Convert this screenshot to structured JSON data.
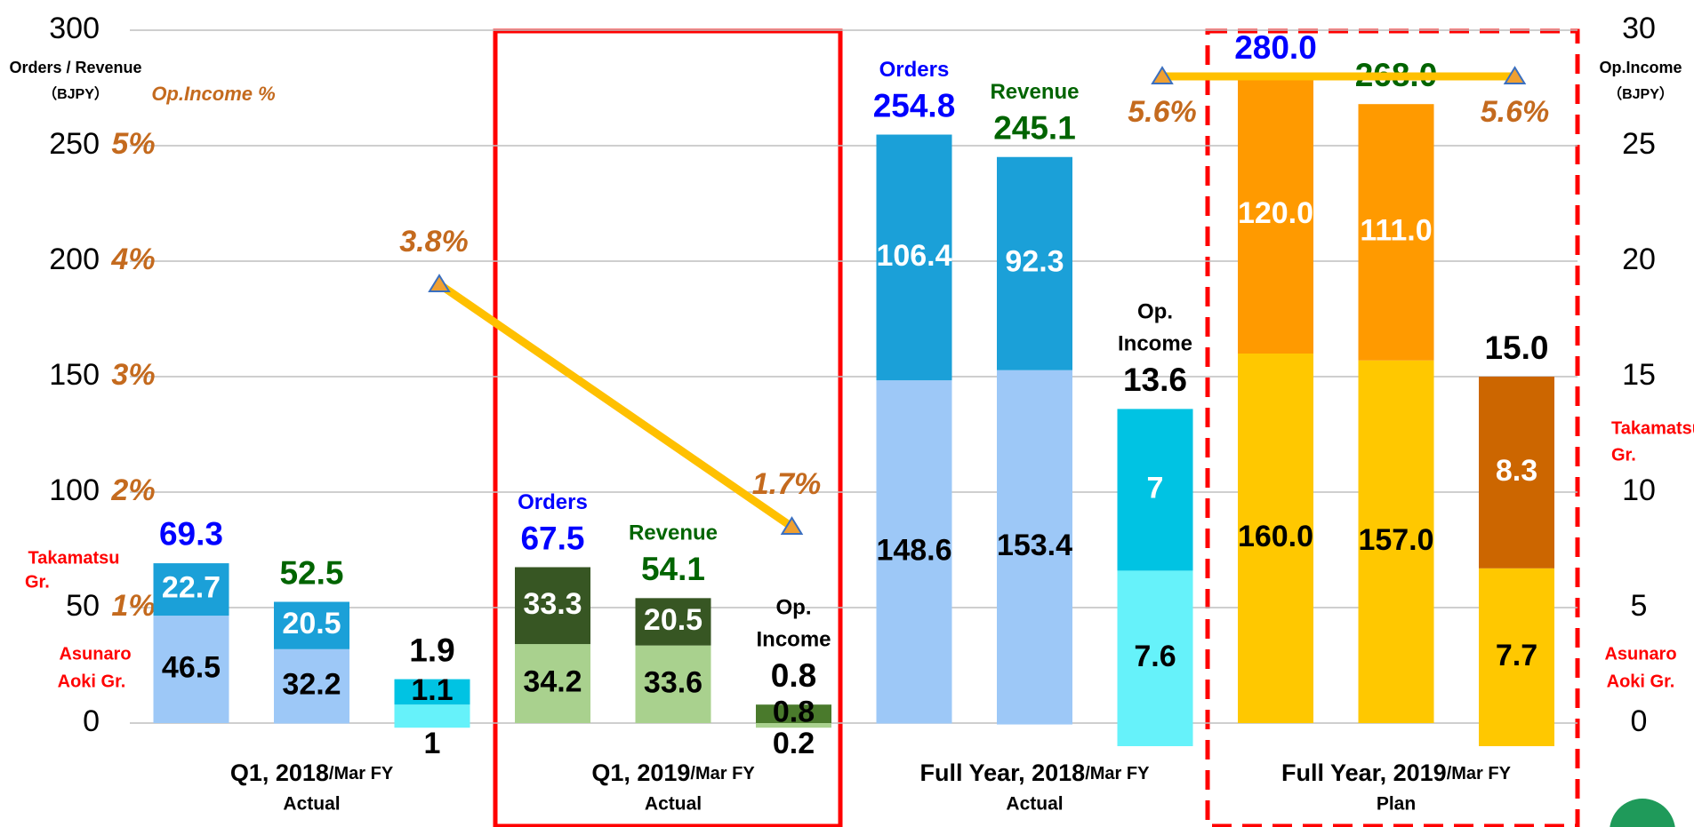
{
  "chart_data": {
    "type": "bar",
    "y_label": "Orders / Revenue",
    "y_unit": "（BJPY）",
    "pct_axis_label": "Op.Income %",
    "y2_label": "Op.Income",
    "y2_unit": "（BJPY）",
    "ylim": [
      0,
      300
    ],
    "yticks": [
      0,
      50,
      100,
      150,
      200,
      250,
      300
    ],
    "y2lim": [
      0,
      30
    ],
    "y2ticks": [
      0,
      5,
      10,
      15,
      20,
      25,
      30
    ],
    "pctlim": [
      0,
      6
    ],
    "pctticks": [
      {
        "value": 1,
        "label": "1%"
      },
      {
        "value": 2,
        "label": "2%"
      },
      {
        "value": 3,
        "label": "3%"
      },
      {
        "value": 4,
        "label": "4%"
      },
      {
        "value": 5,
        "label": "5%"
      }
    ],
    "grid": true,
    "line_color": "#ffc000",
    "legend": [
      [
        "Takamatsu",
        "Gr."
      ],
      [
        "Asunaro",
        "Aoki Gr."
      ]
    ],
    "groups": [
      {
        "label": "Q1, 2018",
        "label_suffix": "/Mar FY",
        "sub": "Actual",
        "pct": 3.8,
        "pct_label": "3.8%",
        "bars": [
          {
            "segments": [
              46.5,
              22.7
            ],
            "total": 69.3,
            "colors": [
              "#9dc8f7",
              "#1ba0d8"
            ],
            "total_color": "#0000ff"
          },
          {
            "segments": [
              32.2,
              20.5
            ],
            "total": 52.5,
            "colors": [
              "#9dc8f7",
              "#1ba0d8"
            ],
            "total_color": "#006400"
          },
          {
            "axis": "y2",
            "segments": [
              1.0,
              1.1
            ],
            "total": 1.9,
            "colors": [
              "#66f2fa",
              "#00c3e3"
            ],
            "total_color": "#000000"
          }
        ]
      },
      {
        "label": "Q1, 2019",
        "label_suffix": "/Mar FY",
        "sub": "Actual",
        "pct": 1.7,
        "pct_label": "1.7%",
        "bars": [
          {
            "names": [
              "Orders"
            ],
            "segments": [
              34.2,
              33.3
            ],
            "total": 67.5,
            "colors": [
              "#a9d18e",
              "#375623"
            ],
            "total_color": "#0000ff"
          },
          {
            "names": [
              "Revenue"
            ],
            "segments": [
              33.6,
              20.5
            ],
            "total": 54.1,
            "colors": [
              "#a9d18e",
              "#375623"
            ],
            "total_color": "#006400"
          },
          {
            "axis": "y2",
            "names": [
              "Op.",
              "Income"
            ],
            "segments": [
              0.2,
              0.8
            ],
            "total": 0.8,
            "colors": [
              "#a9d18e",
              "#4a7a2c"
            ],
            "total_color": "#000000"
          }
        ]
      },
      {
        "label": "Full Year, 2018",
        "label_suffix": "/Mar FY",
        "sub": "Actual",
        "pct": 5.6,
        "pct_label": "5.6%",
        "bars": [
          {
            "names": [
              "Orders"
            ],
            "segments": [
              148.6,
              106.4
            ],
            "total": 254.8,
            "colors": [
              "#9dc8f7",
              "#1ba0d8"
            ],
            "total_color": "#0000ff"
          },
          {
            "names": [
              "Revenue"
            ],
            "segments": [
              153.4,
              92.3
            ],
            "total": 245.1,
            "colors": [
              "#9dc8f7",
              "#1ba0d8"
            ],
            "total_color": "#006400"
          },
          {
            "axis": "y2",
            "names": [
              "Op.",
              "Income"
            ],
            "segments": [
              7.6,
              7.0
            ],
            "total": 13.6,
            "colors": [
              "#66f2fa",
              "#00c3e3"
            ],
            "total_color": "#000000"
          }
        ]
      },
      {
        "label": "Full Year, 2019",
        "label_suffix": "/Mar FY",
        "sub": "Plan",
        "pct": 5.6,
        "pct_label": "5.6%",
        "bars": [
          {
            "segments": [
              160.0,
              120.0
            ],
            "total": 280.0,
            "value_labels": [
              "160.0",
              "120.0"
            ],
            "total_label": "280.0",
            "colors": [
              "#ffc800",
              "#ff9a00"
            ],
            "total_color": "#0000ff"
          },
          {
            "segments": [
              157.0,
              111.0
            ],
            "total": 268.0,
            "value_labels": [
              "157.0",
              "111.0"
            ],
            "total_label": "268.0",
            "colors": [
              "#ffc800",
              "#ff9a00"
            ],
            "total_color": "#006400"
          },
          {
            "axis": "y2",
            "segments": [
              7.7,
              8.3
            ],
            "total": 15.0,
            "total_label": "15.0",
            "colors": [
              "#ffc800",
              "#cc6600"
            ],
            "total_color": "#000000"
          }
        ]
      }
    ]
  }
}
